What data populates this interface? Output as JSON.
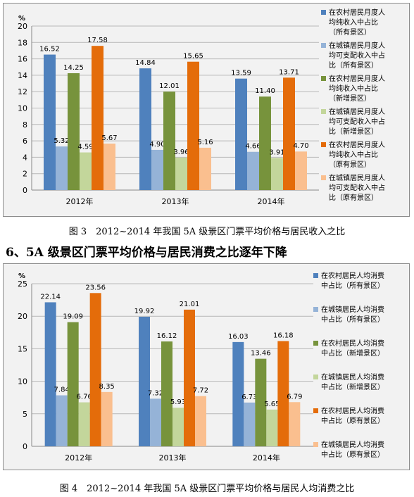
{
  "heading": "6、5A 级景区门票平均价格与居民消费之比逐年下降",
  "colors": {
    "grid": "#b8b8b8",
    "series": [
      "#4f81bd",
      "#95b3d7",
      "#77933c",
      "#c3d69b",
      "#e46c0a",
      "#fabf8f"
    ]
  },
  "chart_data": [
    {
      "type": "bar",
      "title": "",
      "caption": "图 3　2012~2014 年我国 5A 级景区门票平均价格与居民收入之比",
      "ylabel": "%",
      "ylim": [
        0,
        20
      ],
      "yticks": [
        0,
        2,
        4,
        6,
        8,
        10,
        12,
        14,
        16,
        18,
        20
      ],
      "categories": [
        "2012年",
        "2013年",
        "2014年"
      ],
      "legend_position": "right",
      "series": [
        {
          "name": "在农村居民月度人均纯收入中占比（所有景区）",
          "legend_lines": [
            "在农村居民月度人",
            "均纯收入中占比",
            "（所有景区）"
          ],
          "values": [
            16.52,
            14.84,
            13.59
          ],
          "labels": [
            "16.52",
            "14.84",
            "13.59"
          ]
        },
        {
          "name": "在城镇居民月度人均可支配收入中占比（所有景区）",
          "legend_lines": [
            "在城镇居民月度人",
            "均可支配收入中占",
            "比（所有景区）"
          ],
          "values": [
            5.32,
            4.9,
            4.66
          ],
          "labels": [
            "5.32",
            "4.90",
            "4.66"
          ]
        },
        {
          "name": "在农村居民月度人均纯收入中占比（新增景区）",
          "legend_lines": [
            "在农村居民月度人",
            "均纯收入中占比",
            "（新增景区）"
          ],
          "values": [
            14.25,
            12.01,
            11.4
          ],
          "labels": [
            "14.25",
            "12.01",
            "11.40"
          ]
        },
        {
          "name": "在城镇居民月度人均可支配收入中占比（新增景区）",
          "legend_lines": [
            "在城镇居民月度人",
            "均可支配收入中占",
            "比（新增景区）"
          ],
          "values": [
            4.59,
            3.96,
            3.91
          ],
          "labels": [
            "4.59",
            "3.96",
            "3.91"
          ]
        },
        {
          "name": "在农村居民月度人均纯收入中占比（原有景区）",
          "legend_lines": [
            "在农村居民月度人",
            "均纯收入中占比",
            "（原有景区）"
          ],
          "values": [
            17.58,
            15.65,
            13.71
          ],
          "labels": [
            "17.58",
            "15.65",
            "13.71"
          ]
        },
        {
          "name": "在城镇居民月度人均可支配收入中占比（原有景区）",
          "legend_lines": [
            "在城镇居民月度人",
            "均可支配收入中占",
            "比（原有景区）"
          ],
          "values": [
            5.67,
            5.16,
            4.7
          ],
          "labels": [
            "5.67",
            "5.16",
            "4.70"
          ]
        }
      ]
    },
    {
      "type": "bar",
      "title": "",
      "caption": "图 4　2012~2014 年我国 5A 级景区门票平均价格与居民人均消费之比",
      "ylabel": "%",
      "ylim": [
        0,
        25
      ],
      "yticks": [
        0,
        5,
        10,
        15,
        20,
        25
      ],
      "categories": [
        "2012年",
        "2013年",
        "2014年"
      ],
      "legend_position": "right",
      "series": [
        {
          "name": "在农村居民人均消费中占比（所有景区）",
          "legend_lines": [
            "在农村居民人均消费",
            "中占比（所有景区）"
          ],
          "values": [
            22.14,
            19.92,
            16.03
          ],
          "labels": [
            "22.14",
            "19.92",
            "16.03"
          ]
        },
        {
          "name": "在城镇居民人均消费中占比（所有景区）",
          "legend_lines": [
            "在城镇居民人均消费",
            "中占比（所有景区）"
          ],
          "values": [
            7.84,
            7.32,
            6.73
          ],
          "labels": [
            "7.84",
            "7.32",
            "6.73"
          ]
        },
        {
          "name": "在农村居民人均消费中占比（新增景区）",
          "legend_lines": [
            "在农村居民人均消费",
            "中占比（新增景区）"
          ],
          "values": [
            19.09,
            16.12,
            13.46
          ],
          "labels": [
            "19.09",
            "16.12",
            "13.46"
          ]
        },
        {
          "name": "在城镇居民人均消费中占比（新增景区）",
          "legend_lines": [
            "在城镇居民人均消费",
            "中占比（新增景区）"
          ],
          "values": [
            6.76,
            5.93,
            5.65
          ],
          "labels": [
            "6.76",
            "5.93",
            "5.65"
          ]
        },
        {
          "name": "在农村居民人均消费中占比（原有景区）",
          "legend_lines": [
            "在农村居民人均消费",
            "中占比（原有景区）"
          ],
          "values": [
            23.56,
            21.01,
            16.18
          ],
          "labels": [
            "23.56",
            "21.01",
            "16.18"
          ]
        },
        {
          "name": "在城镇居民人均消费中占比（原有景区）",
          "legend_lines": [
            "在城镇居民人均消费",
            "中占比（原有景区）"
          ],
          "values": [
            8.35,
            7.72,
            6.79
          ],
          "labels": [
            "8.35",
            "7.72",
            "6.79"
          ]
        }
      ]
    }
  ]
}
